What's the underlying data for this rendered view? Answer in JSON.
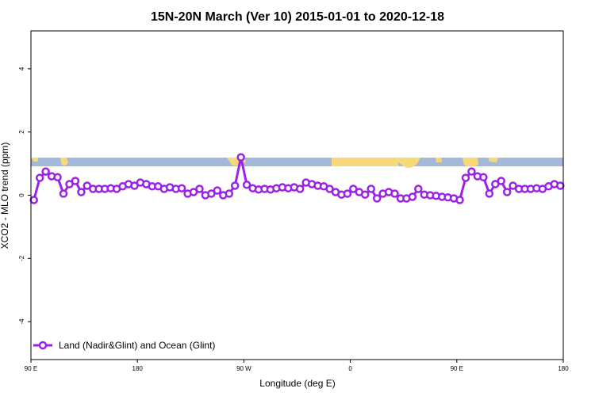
{
  "chart_data": {
    "type": "line",
    "title": "15N-20N March (Ver 10)   2015-01-01 to 2020-12-18",
    "xlabel": "Longitude (deg E)",
    "ylabel": "XCO2 - MLO trend (ppm)",
    "x_ticks": [
      "90 E",
      "180",
      "90 W",
      "0",
      "90 E",
      "180"
    ],
    "x_tick_values": [
      90,
      180,
      270,
      360,
      450,
      540
    ],
    "xlim": [
      90,
      540
    ],
    "y_ticks": [
      "-4",
      "-2",
      "0",
      "2",
      "4"
    ],
    "y_tick_values": [
      -4,
      -2,
      0,
      2,
      4
    ],
    "ylim": [
      -5.2,
      5.2
    ],
    "grid": false,
    "legend_position": "bottom-left",
    "series": [
      {
        "name": "Land (Nadir&Glint) and Ocean (Glint)",
        "color": "#9b22e6",
        "x": [
          92.5,
          97.5,
          102.5,
          107.5,
          112.5,
          117.5,
          122.5,
          127.5,
          132.5,
          137.5,
          142.5,
          147.5,
          152.5,
          157.5,
          162.5,
          167.5,
          172.5,
          177.5,
          182.5,
          187.5,
          192.5,
          197.5,
          202.5,
          207.5,
          212.5,
          217.5,
          222.5,
          227.5,
          232.5,
          237.5,
          242.5,
          247.5,
          252.5,
          257.5,
          262.5,
          267.5,
          272.5,
          277.5,
          282.5,
          287.5,
          292.5,
          297.5,
          302.5,
          307.5,
          312.5,
          317.5,
          322.5,
          327.5,
          332.5,
          337.5,
          342.5,
          347.5,
          352.5,
          357.5,
          362.5,
          367.5,
          372.5,
          377.5,
          382.5,
          387.5,
          392.5,
          397.5,
          402.5,
          407.5,
          412.5,
          417.5,
          422.5,
          427.5,
          432.5,
          437.5,
          442.5,
          447.5,
          452.5,
          457.5,
          462.5,
          467.5,
          472.5,
          477.5,
          482.5,
          487.5,
          492.5,
          497.5,
          502.5,
          507.5,
          512.5,
          517.5,
          522.5,
          527.5,
          532.5,
          537.5
        ],
        "y": [
          -0.15,
          0.55,
          0.75,
          0.6,
          0.57,
          0.05,
          0.35,
          0.45,
          0.1,
          0.3,
          0.2,
          0.2,
          0.2,
          0.22,
          0.2,
          0.28,
          0.35,
          0.3,
          0.4,
          0.35,
          0.28,
          0.28,
          0.2,
          0.25,
          0.2,
          0.22,
          0.05,
          0.1,
          0.2,
          0.0,
          0.05,
          0.15,
          0.0,
          0.05,
          0.3,
          1.2,
          0.33,
          0.22,
          0.18,
          0.2,
          0.18,
          0.22,
          0.25,
          0.22,
          0.25,
          0.2,
          0.4,
          0.35,
          0.3,
          0.28,
          0.2,
          0.1,
          0.02,
          0.05,
          0.2,
          0.1,
          0.02,
          0.2,
          -0.1,
          0.05,
          0.1,
          0.05,
          -0.1,
          -0.1,
          -0.05,
          0.2,
          0.02,
          0.0,
          -0.02,
          -0.05,
          -0.07,
          -0.1,
          -0.15,
          0.55,
          0.75,
          0.6,
          0.57,
          0.05,
          0.35,
          0.45,
          0.1,
          0.3,
          0.2,
          0.2,
          0.2,
          0.22,
          0.2,
          0.28,
          0.35,
          0.3
        ]
      }
    ]
  }
}
